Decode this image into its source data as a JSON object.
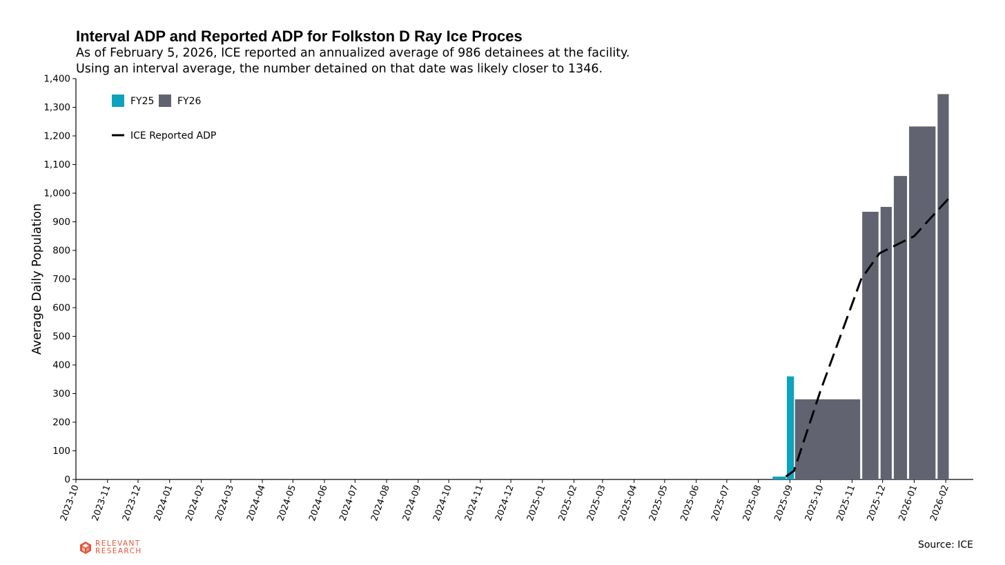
{
  "title": "Interval ADP and Reported ADP for Folkston D Ray Ice Proces",
  "subtitle_lines": [
    "As of February 5, 2026, ICE reported an annualized average of 986 detainees at the facility.",
    "Using an interval average, the number detained on that date was likely closer to 1346."
  ],
  "source": "Source: ICE",
  "logo": {
    "line1": "RELEVANT",
    "line2": "RESEARCH",
    "color": "#e2543b",
    "icon": "cube-logo-icon"
  },
  "chart_data": {
    "type": "bar",
    "ylabel": "Average Daily Population",
    "xlabel": "",
    "ylim": [
      0,
      1400
    ],
    "yticks": [
      0,
      100,
      200,
      300,
      400,
      500,
      600,
      700,
      800,
      900,
      1000,
      1100,
      1200,
      1300,
      1400
    ],
    "ytick_labels": [
      "0",
      "100",
      "200",
      "300",
      "400",
      "500",
      "600",
      "700",
      "800",
      "900",
      "1,000",
      "1,100",
      "1,200",
      "1,300",
      "1,400"
    ],
    "xlim": [
      "2023-10-01",
      "2026-02-28"
    ],
    "xticks": [
      "2023-10",
      "2023-11",
      "2023-12",
      "2024-01",
      "2024-02",
      "2024-03",
      "2024-04",
      "2024-05",
      "2024-06",
      "2024-07",
      "2024-08",
      "2024-09",
      "2024-10",
      "2024-11",
      "2024-12",
      "2025-01",
      "2025-02",
      "2025-03",
      "2025-04",
      "2025-05",
      "2025-06",
      "2025-07",
      "2025-08",
      "2025-09",
      "2025-10",
      "2025-11",
      "2025-12",
      "2026-01",
      "2026-02"
    ],
    "colors": {
      "FY25": "#0ea2bd",
      "FY26": "#616470",
      "reported_line": "#000000"
    },
    "legend": {
      "placement": "top-left",
      "bar_entries": [
        "FY25",
        "FY26"
      ],
      "line_entry": "ICE Reported ADP"
    },
    "series": [
      {
        "name": "FY25",
        "bars": [
          {
            "start": "2025-08-15",
            "end": "2025-08-29",
            "value": 10
          },
          {
            "start": "2025-08-29",
            "end": "2025-09-06",
            "value": 360
          }
        ]
      },
      {
        "name": "FY26",
        "bars": [
          {
            "start": "2025-09-06",
            "end": "2025-11-10",
            "value": 280
          },
          {
            "start": "2025-11-11",
            "end": "2025-11-28",
            "value": 935
          },
          {
            "start": "2025-11-29",
            "end": "2025-12-11",
            "value": 952
          },
          {
            "start": "2025-12-12",
            "end": "2025-12-26",
            "value": 1060
          },
          {
            "start": "2025-12-27",
            "end": "2026-01-23",
            "value": 1233
          },
          {
            "start": "2026-01-24",
            "end": "2026-02-05",
            "value": 1346
          }
        ]
      },
      {
        "name": "ICE Reported ADP",
        "type": "line",
        "style": "dashed",
        "points": [
          {
            "x": "2025-08-28",
            "y": 10
          },
          {
            "x": "2025-09-05",
            "y": 30
          },
          {
            "x": "2025-10-01",
            "y": 310
          },
          {
            "x": "2025-11-10",
            "y": 700
          },
          {
            "x": "2025-11-28",
            "y": 790
          },
          {
            "x": "2026-01-01",
            "y": 850
          },
          {
            "x": "2026-02-05",
            "y": 986
          }
        ]
      }
    ]
  }
}
